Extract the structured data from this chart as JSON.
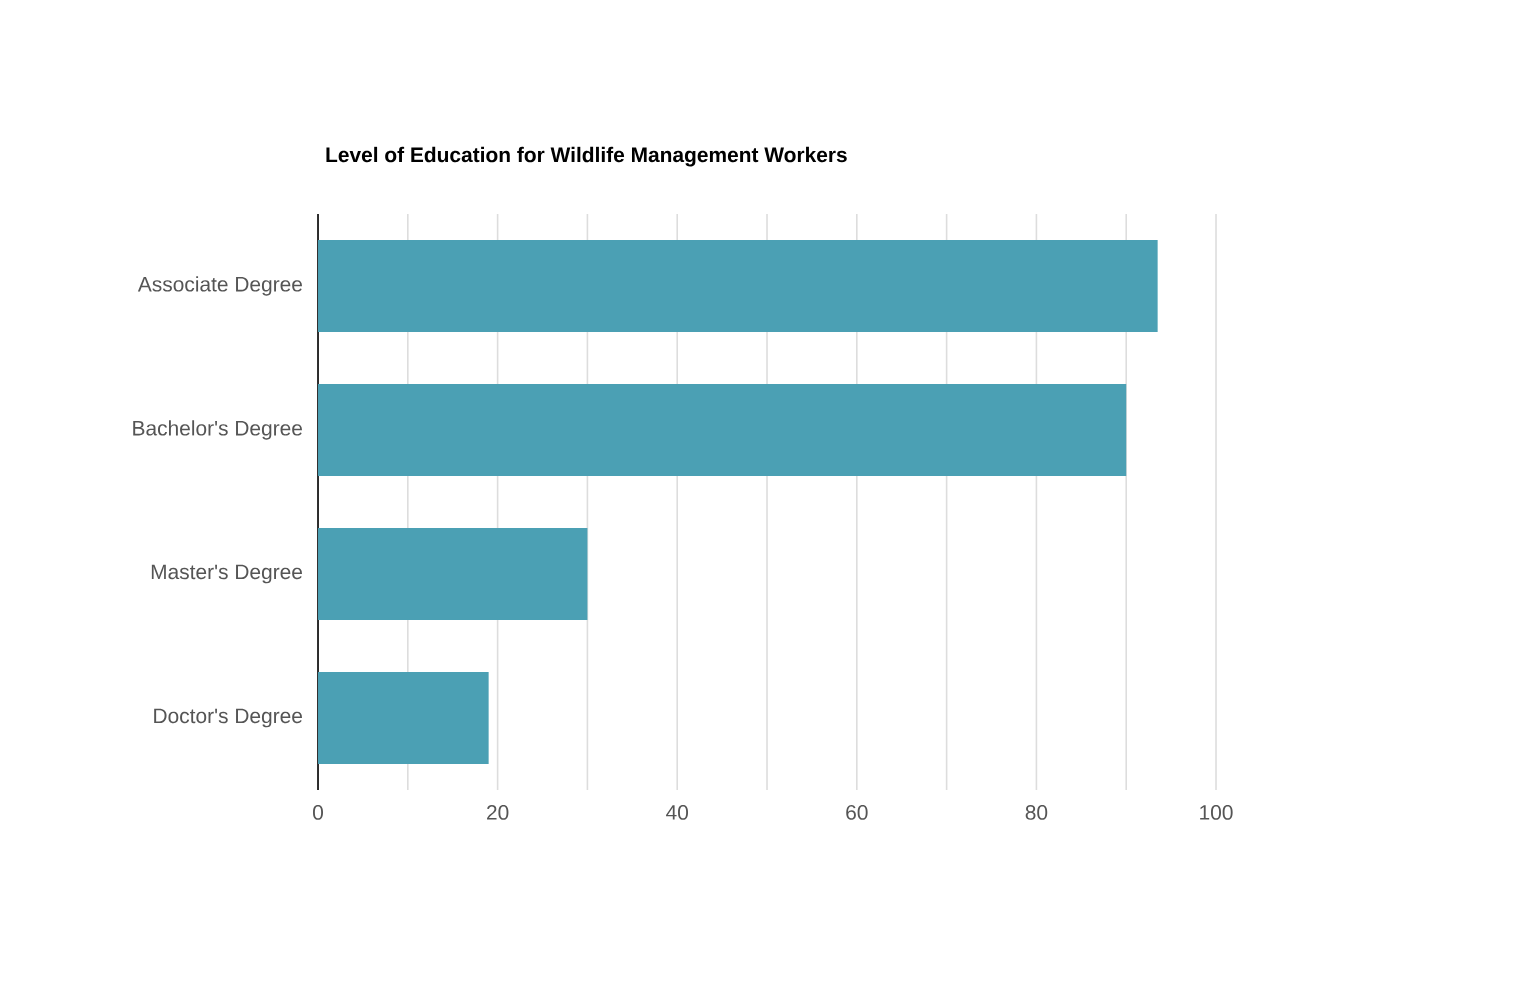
{
  "chart_data": {
    "type": "bar",
    "orientation": "horizontal",
    "title": "Level of Education for Wildlife Management Workers",
    "categories": [
      "Associate Degree",
      "Bachelor's Degree",
      "Master's Degree",
      "Doctor's Degree"
    ],
    "values": [
      93.5,
      90,
      30,
      19
    ],
    "color": "#4ba0b4",
    "xlim": [
      0,
      100
    ],
    "xticks": [
      0,
      {
        "value": 10,
        "label": null
      },
      20,
      {
        "value": 30,
        "label": null
      },
      40,
      {
        "value": 50,
        "label": null
      },
      60,
      {
        "value": 70,
        "label": null
      },
      80,
      {
        "value": 90,
        "label": null
      },
      100
    ],
    "grid": "x"
  }
}
